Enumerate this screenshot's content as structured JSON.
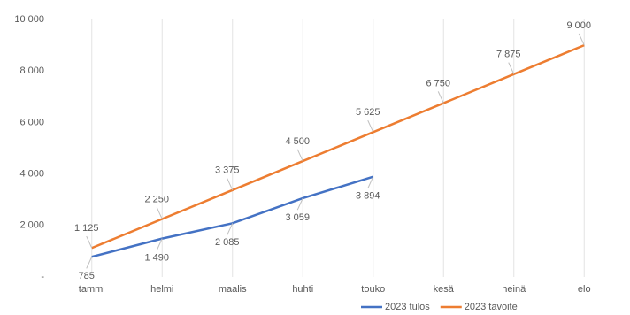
{
  "chart_data": {
    "type": "line",
    "categories": [
      "tammi",
      "helmi",
      "maalis",
      "huhti",
      "touko",
      "kesä",
      "heinä",
      "elo"
    ],
    "series": [
      {
        "name": "2023 tulos",
        "color": "#4472c4",
        "values": [
          785,
          1490,
          2085,
          3059,
          3894,
          null,
          null,
          null
        ],
        "value_labels": [
          "785",
          "1 490",
          "2 085",
          "3 059",
          "3 894",
          null,
          null,
          null
        ]
      },
      {
        "name": "2023 tavoite",
        "color": "#ed7d31",
        "values": [
          1125,
          2250,
          3375,
          4500,
          5625,
          6750,
          7875,
          9000
        ],
        "value_labels": [
          "1 125",
          "2 250",
          "3 375",
          "4 500",
          "5 625",
          "6 750",
          "7 875",
          "9 000"
        ]
      }
    ],
    "ylim": [
      0,
      10000
    ],
    "yticks": [
      {
        "value": 0,
        "label": "-"
      },
      {
        "value": 2000,
        "label": "2 000"
      },
      {
        "value": 4000,
        "label": "4 000"
      },
      {
        "value": 6000,
        "label": "6 000"
      },
      {
        "value": 8000,
        "label": "8 000"
      },
      {
        "value": 10000,
        "label": "10 000"
      }
    ],
    "legend": "bottom"
  }
}
